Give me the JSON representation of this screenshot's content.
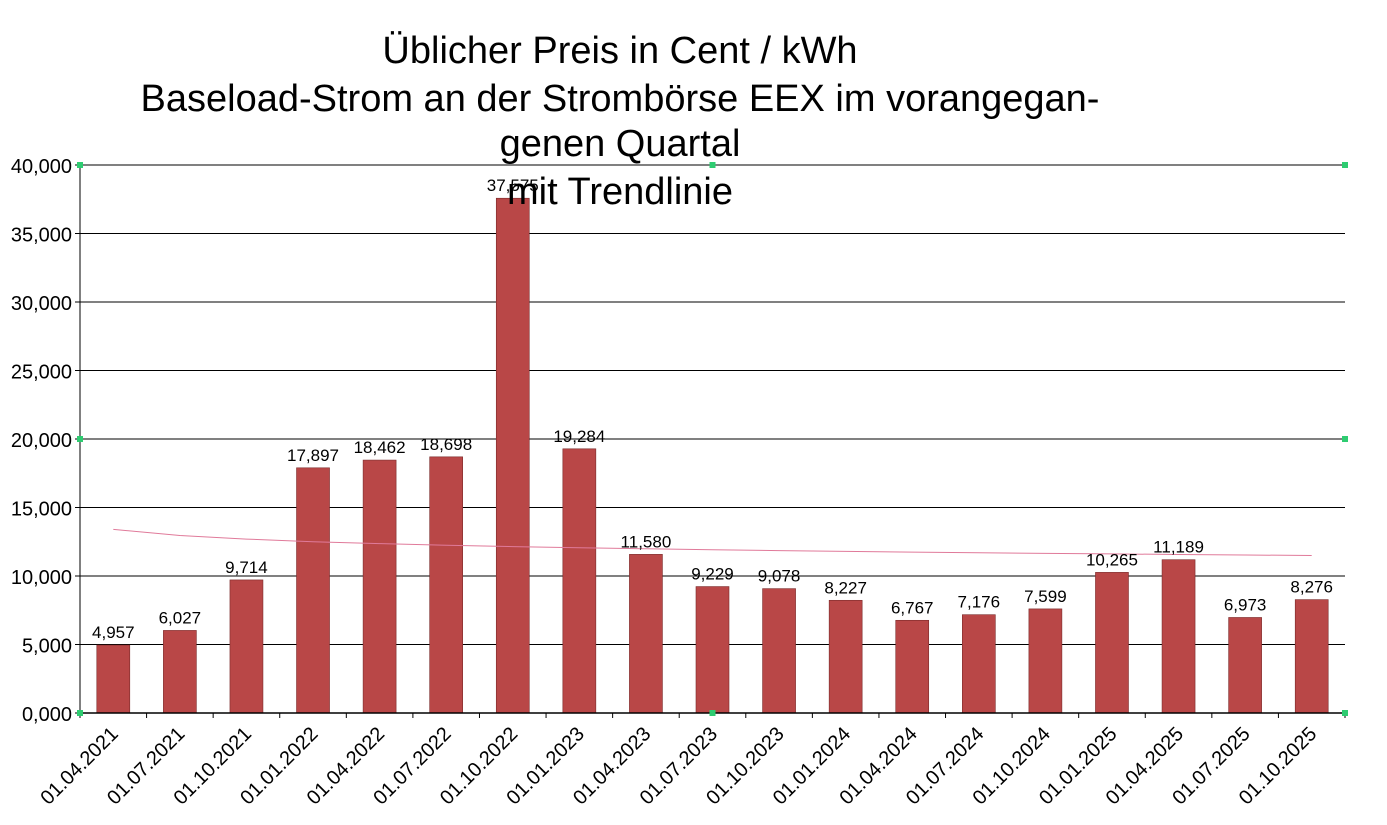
{
  "chart_data": {
    "type": "bar",
    "title_lines": [
      "Üblicher Preis in Cent / kWh",
      "Baseload-Strom an der Strombörse EEX im vorangegan-",
      "genen Quartal",
      "mit Trendlinie"
    ],
    "categories": [
      "01.04.2021",
      "01.07.2021",
      "01.10.2021",
      "01.01.2022",
      "01.04.2022",
      "01.07.2022",
      "01.10.2022",
      "01.01.2023",
      "01.04.2023",
      "01.07.2023",
      "01.10.2023",
      "01.01.2024",
      "01.04.2024",
      "01.07.2024",
      "01.10.2024",
      "01.01.2025",
      "01.04.2025",
      "01.07.2025",
      "01.10.2025"
    ],
    "values": [
      4.957,
      6.027,
      9.714,
      17.897,
      18.462,
      18.698,
      37.575,
      19.284,
      11.58,
      9.229,
      9.078,
      8.227,
      6.767,
      7.176,
      7.599,
      10.265,
      11.189,
      6.973,
      8.276
    ],
    "value_labels": [
      "4,957",
      "6,027",
      "9,714",
      "17,897",
      "18,462",
      "18,698",
      "37,575",
      "19,284",
      "11,580",
      "9,229",
      "9,078",
      "8,227",
      "6,767",
      "7,176",
      "7,599",
      "10,265",
      "11,189",
      "6,973",
      "8,276"
    ],
    "y_tick_labels": [
      "0,000",
      "5,000",
      "10,000",
      "15,000",
      "20,000",
      "25,000",
      "30,000",
      "35,000",
      "40,000"
    ],
    "ylim": [
      0,
      40
    ],
    "grid": true,
    "trendline": {
      "type": "logarithmic",
      "start": 13.4,
      "end": 11.5
    },
    "colors": {
      "bar": "#b94747",
      "bar_edge": "#7a2a2a",
      "trend": "#e07a9a",
      "grid": "#000000",
      "handle": "#2ecc71"
    }
  }
}
